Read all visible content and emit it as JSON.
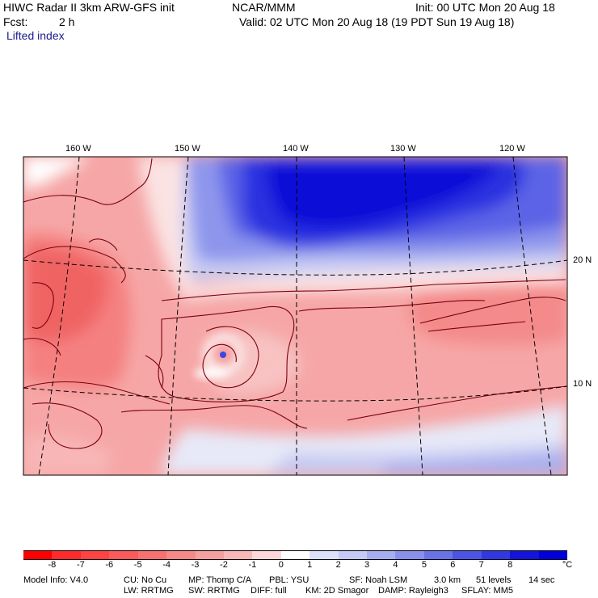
{
  "header": {
    "title": "HIWC Radar II 3km ARW-GFS init",
    "org": "NCAR/MMM",
    "init": "Init: 00 UTC Mon 20 Aug 18",
    "fcst_label": "Fcst:",
    "fcst_value": "2 h",
    "valid": "Valid: 02 UTC Mon 20 Aug 18 (19 PDT Sun 19 Aug 18)",
    "field": "Lifted index"
  },
  "map": {
    "lon_labels": [
      "160 W",
      "150 W",
      "140 W",
      "130 W",
      "120 W"
    ],
    "lat_labels": [
      "20 N",
      "10 N"
    ]
  },
  "colorbar": {
    "tick_labels": [
      "-8",
      "-7",
      "-6",
      "-5",
      "-4",
      "-3",
      "-2",
      "-1",
      "0",
      "1",
      "2",
      "3",
      "4",
      "5",
      "6",
      "7",
      "8"
    ],
    "unit": "°C",
    "colors": [
      "#ff0000",
      "#ff2a2a",
      "#ff4242",
      "#fc5a5a",
      "#f97070",
      "#f68888",
      "#f5a0a0",
      "#f8b8b8",
      "#fcd8d8",
      "#ffffff",
      "#dce0f8",
      "#c4caf4",
      "#a6aef0",
      "#8890ec",
      "#6a72e8",
      "#4c54e6",
      "#3038e2",
      "#1414dc",
      "#0000dc"
    ]
  },
  "model_info": {
    "line1": [
      "Model Info: V4.0",
      "CU: No Cu",
      "MP: Thomp C/A",
      "PBL: YSU",
      "SF: Noah LSM",
      "3.0 km",
      "51 levels",
      "14 sec"
    ],
    "line2": [
      "LW: RRTMG",
      "SW: RRTMG",
      "DIFF: full",
      "KM: 2D Smagor",
      "DAMP: Rayleigh3",
      "SFLAY: MM5"
    ]
  }
}
